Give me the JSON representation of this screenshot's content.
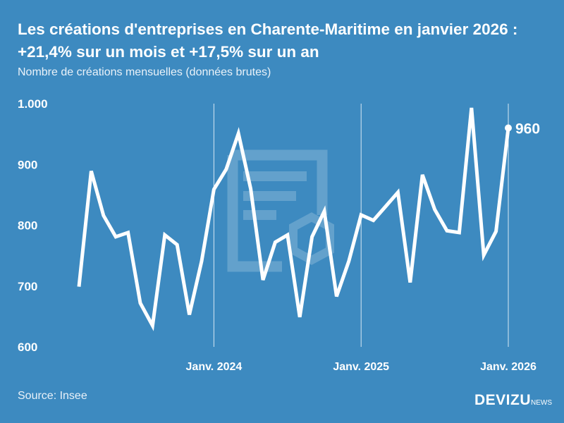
{
  "title": "Les créations d'entreprises en Charente-Maritime en janvier 2026 : +21,4% sur un mois et +17,5% sur un an",
  "subtitle": "Nombre de créations mensuelles (données brutes)",
  "source": "Source: Insee",
  "logo": {
    "main": "DEVIZU",
    "suffix": "NEWS"
  },
  "colors": {
    "background": "#3d8ac0",
    "line": "#ffffff"
  },
  "chart_data": {
    "type": "line",
    "title": "Les créations d'entreprises en Charente-Maritime en janvier 2026 : +21,4% sur un mois et +17,5% sur un an",
    "ylabel": "Nombre de créations mensuelles (données brutes)",
    "ylim": [
      600,
      1000
    ],
    "yticks": [
      {
        "value": 1000,
        "label": "1.000"
      },
      {
        "value": 900,
        "label": "900"
      },
      {
        "value": 800,
        "label": "800"
      },
      {
        "value": 700,
        "label": "700"
      },
      {
        "value": 600,
        "label": "600"
      }
    ],
    "xticks": [
      {
        "index": 11,
        "label": "Janv. 2024"
      },
      {
        "index": 23,
        "label": "Janv. 2025"
      },
      {
        "index": 35,
        "label": "Janv. 2026"
      }
    ],
    "grid": "vertical lines at January",
    "x": [
      "2023-02",
      "2023-03",
      "2023-04",
      "2023-05",
      "2023-06",
      "2023-07",
      "2023-08",
      "2023-09",
      "2023-10",
      "2023-11",
      "2023-12",
      "2024-01",
      "2024-02",
      "2024-03",
      "2024-04",
      "2024-05",
      "2024-06",
      "2024-07",
      "2024-08",
      "2024-09",
      "2024-10",
      "2024-11",
      "2024-12",
      "2025-01",
      "2025-02",
      "2025-03",
      "2025-04",
      "2025-05",
      "2025-06",
      "2025-07",
      "2025-08",
      "2025-09",
      "2025-10",
      "2025-11",
      "2025-12",
      "2026-01"
    ],
    "values": [
      699,
      889,
      816,
      781,
      788,
      672,
      635,
      784,
      768,
      653,
      741,
      859,
      892,
      951,
      860,
      710,
      772,
      784,
      649,
      781,
      823,
      683,
      741,
      817,
      808,
      831,
      854,
      706,
      883,
      826,
      791,
      788,
      993,
      751,
      790,
      960
    ],
    "annotation": {
      "index": 35,
      "label": "960"
    }
  }
}
